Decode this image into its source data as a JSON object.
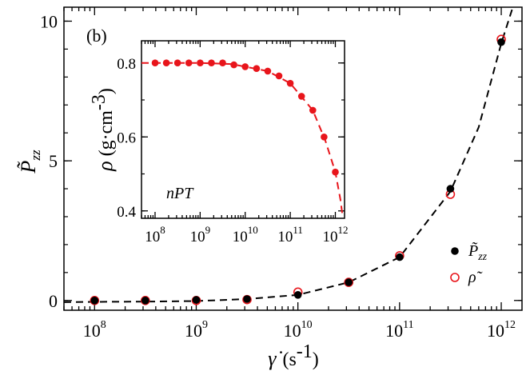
{
  "colors": {
    "black": "#000000",
    "red": "#e8151b",
    "white": "#ffffff"
  },
  "chart_data": [
    {
      "type": "scatter",
      "panel_label": "(b)",
      "xscale": "log",
      "xlim": [
        50000000.0,
        1600000000000.0
      ],
      "ylim": [
        -0.35,
        10.5
      ],
      "xticks": [
        {
          "value": 100000000.0,
          "base": "10",
          "exp": "8"
        },
        {
          "value": 1000000000.0,
          "base": "10",
          "exp": "9"
        },
        {
          "value": 10000000000.0,
          "base": "10",
          "exp": "10"
        },
        {
          "value": 100000000000.0,
          "base": "10",
          "exp": "11"
        },
        {
          "value": 1000000000000.0,
          "base": "10",
          "exp": "12"
        }
      ],
      "yticks": [
        {
          "value": 0,
          "label": "0"
        },
        {
          "value": 5,
          "label": "5"
        },
        {
          "value": 10,
          "label": "10"
        }
      ],
      "xlabel": {
        "symbol": "γ̇",
        "unit": "(s-1)",
        "unit_base": "(s",
        "unit_exp": "-1",
        "unit_close": ")"
      },
      "ylabel": {
        "symbol": "P̃",
        "sub": "zz"
      },
      "legend_position": "bottom-right",
      "legend": [
        {
          "series": "Pzz",
          "base": "P̃",
          "sub": "zz",
          "marker": "filled-black-circle"
        },
        {
          "series": "rho",
          "base": "ρ̃",
          "sub": "",
          "marker": "open-red-circle"
        }
      ],
      "series": [
        {
          "id": "Pzz",
          "marker": "filled",
          "color": "#000000",
          "x": [
            100000000.0,
            316000000.0,
            1000000000.0,
            3160000000.0,
            10000000000.0,
            31600000000.0,
            100000000000.0,
            316000000000.0,
            1000000000000.0
          ],
          "y": [
            0.0,
            0.0,
            0.02,
            0.05,
            0.2,
            0.65,
            1.55,
            4.0,
            9.25
          ]
        },
        {
          "id": "rho",
          "marker": "open",
          "color": "#e8151b",
          "x": [
            100000000.0,
            316000000.0,
            1000000000.0,
            3160000000.0,
            10000000000.0,
            31600000000.0,
            100000000000.0,
            316000000000.0,
            1000000000000.0
          ],
          "y": [
            0.0,
            0.0,
            0.0,
            0.03,
            0.3,
            0.65,
            1.6,
            3.8,
            9.35
          ]
        }
      ],
      "fit_line": {
        "style": "dashed",
        "color": "#000000",
        "x": [
          50000000.0,
          100000000.0,
          316000000.0,
          1000000000.0,
          3160000000.0,
          10000000000.0,
          31600000000.0,
          100000000000.0,
          316000000000.0,
          600000000000.0,
          1000000000000.0,
          1300000000000.0,
          1450000000000.0
        ],
        "y": [
          -0.06,
          -0.05,
          -0.04,
          -0.02,
          0.05,
          0.2,
          0.65,
          1.55,
          3.9,
          6.2,
          9.2,
          10.5,
          11.2
        ]
      }
    },
    {
      "type": "line",
      "inset": true,
      "annotation": "nPT",
      "xscale": "log",
      "xlim": [
        50000000.0,
        1600000000000.0
      ],
      "ylim": [
        0.38,
        0.86
      ],
      "xticks": [
        {
          "value": 100000000.0,
          "base": "10",
          "exp": "8"
        },
        {
          "value": 1000000000.0,
          "base": "10",
          "exp": "9"
        },
        {
          "value": 10000000000.0,
          "base": "10",
          "exp": "10"
        },
        {
          "value": 100000000000.0,
          "base": "10",
          "exp": "11"
        },
        {
          "value": 1000000000000.0,
          "base": "10",
          "exp": "12"
        }
      ],
      "yticks": [
        {
          "value": 0.4,
          "label": "0.4"
        },
        {
          "value": 0.6,
          "label": "0.6"
        },
        {
          "value": 0.8,
          "label": "0.8"
        }
      ],
      "ylabel": {
        "symbol": "ρ",
        "unit_base": "(g·cm",
        "unit_exp": "-3",
        "unit_close": ")"
      },
      "series": [
        {
          "id": "density",
          "marker": "filled",
          "color": "#e8151b",
          "x": [
            100000000.0,
            178000000.0,
            316000000.0,
            562000000.0,
            1000000000.0,
            1780000000.0,
            3160000000.0,
            5620000000.0,
            10000000000.0,
            17800000000.0,
            31600000000.0,
            56200000000.0,
            100000000000.0,
            178000000000.0,
            316000000000.0,
            562000000000.0,
            1000000000000.0
          ],
          "y": [
            0.8,
            0.8,
            0.8,
            0.8,
            0.8,
            0.8,
            0.8,
            0.795,
            0.79,
            0.785,
            0.778,
            0.765,
            0.745,
            0.71,
            0.672,
            0.6,
            0.505
          ]
        }
      ],
      "fit_line": {
        "style": "dashed",
        "color": "#e8151b",
        "x": [
          50000000.0,
          100000000.0,
          1000000000.0,
          5000000000.0,
          10000000000.0,
          31600000000.0,
          100000000000.0,
          316000000000.0,
          600000000000.0,
          1000000000000.0,
          1300000000000.0,
          1450000000000.0
        ],
        "y": [
          0.8,
          0.8,
          0.8,
          0.797,
          0.79,
          0.778,
          0.745,
          0.672,
          0.59,
          0.505,
          0.43,
          0.385
        ]
      }
    }
  ]
}
